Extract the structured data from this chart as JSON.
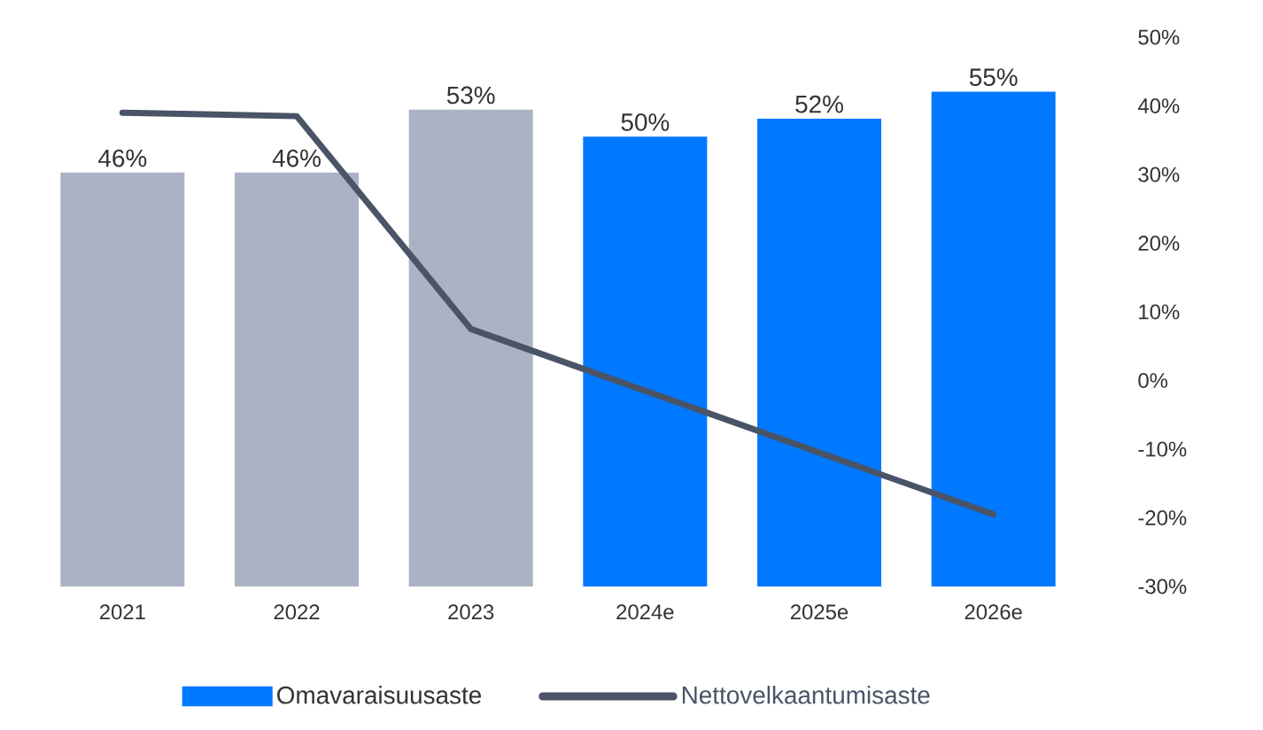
{
  "chart_data": {
    "type": "bar",
    "categories": [
      "2021",
      "2022",
      "2023",
      "2024e",
      "2025e",
      "2026e"
    ],
    "series": [
      {
        "name": "Omavaraisuusaste",
        "color": "#0078ff",
        "colors": [
          "#abb2c3",
          "#abb2c3",
          "#abb2c3",
          "#0078ff",
          "#0078ff",
          "#0078ff"
        ],
        "values": [
          46,
          46,
          53,
          50,
          52,
          55
        ],
        "value_labels": [
          "46%",
          "46%",
          "53%",
          "50%",
          "52%",
          "55%"
        ]
      },
      {
        "name": "Nettovelkaantumisaste",
        "type": "line",
        "axis": "y2",
        "color": "#4a5467",
        "values": [
          39,
          38.5,
          7.5,
          -1.5,
          -10.5,
          -19.5
        ]
      }
    ],
    "y2lim": [
      -30,
      50
    ],
    "y2ticks": [
      {
        "value": 50,
        "label": "50%"
      },
      {
        "value": 40,
        "label": "40%"
      },
      {
        "value": 30,
        "label": "30%"
      },
      {
        "value": 20,
        "label": "20%"
      },
      {
        "value": 10,
        "label": "10%"
      },
      {
        "value": 0,
        "label": "0%"
      },
      {
        "value": -10,
        "label": "-10%"
      },
      {
        "value": -20,
        "label": "-20%"
      },
      {
        "value": -30,
        "label": "-30%"
      }
    ],
    "legend": "bottom",
    "marker": "none",
    "line_style": "solid"
  }
}
